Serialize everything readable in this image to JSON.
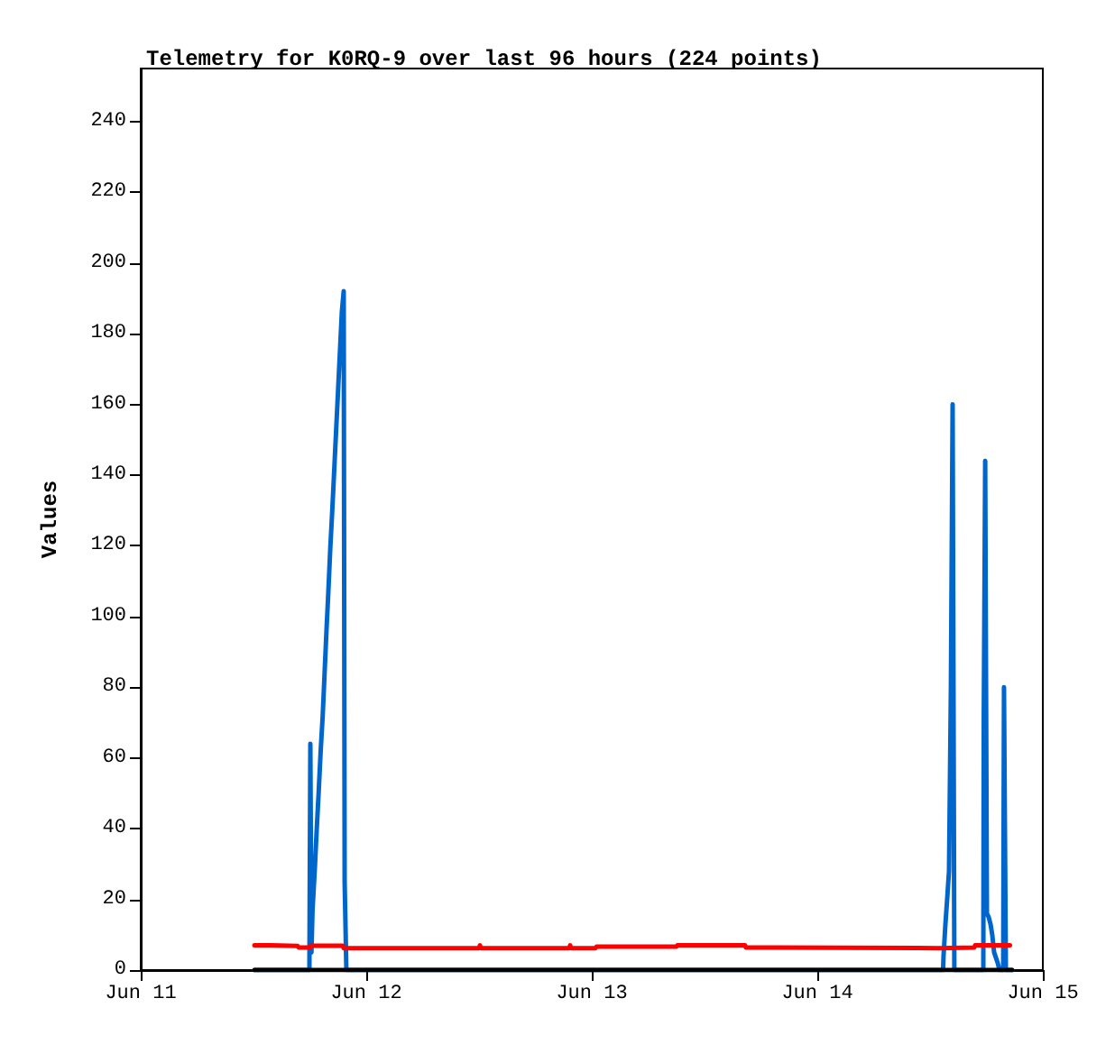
{
  "chart_data": {
    "type": "line",
    "title": "Telemetry for K0RQ-9 over last 96 hours (224 points)",
    "ylabel": "Values",
    "xlim": [
      "--06-11",
      "--06-15"
    ],
    "xticks": [
      {
        "value": "--06-11",
        "label": "Jun 11"
      },
      {
        "value": "--06-12",
        "label": "Jun 12"
      },
      {
        "value": "--06-13",
        "label": "Jun 13"
      },
      {
        "value": "--06-14",
        "label": "Jun 14"
      },
      {
        "value": "--06-15",
        "label": "Jun 15"
      }
    ],
    "ylim": [
      0,
      255
    ],
    "yticks": [
      0,
      20,
      40,
      60,
      80,
      100,
      120,
      140,
      160,
      180,
      200,
      220,
      240
    ],
    "grid": false,
    "marker": "none",
    "line_style": "solid",
    "series": [
      {
        "color": "#0066cc",
        "x": [
          "--06-11T12:06",
          "--06-11T17:57",
          "--06-11T18:03",
          "--06-11T18:10",
          "--06-11T18:17",
          "--06-11T18:20",
          "--06-11T18:32",
          "--06-11T18:44",
          "--06-11T18:57",
          "--06-11T19:09",
          "--06-11T19:22",
          "--06-11T19:34",
          "--06-11T19:46",
          "--06-11T19:58",
          "--06-11T20:10",
          "--06-11T20:23",
          "--06-11T20:35",
          "--06-11T20:47",
          "--06-11T20:59",
          "--06-11T21:11",
          "--06-11T21:24",
          "--06-11T21:36",
          "--06-11T21:42",
          "--06-11T21:53",
          "--06-14T13:23",
          "--06-14T13:26",
          "--06-14T13:38",
          "--06-14T13:49",
          "--06-14T14:01",
          "--06-14T14:13",
          "--06-14T14:24",
          "--06-14T14:35",
          "--06-14T17:40",
          "--06-14T17:43",
          "--06-14T17:52",
          "--06-14T18:03",
          "--06-14T18:14",
          "--06-14T18:26",
          "--06-14T18:37",
          "--06-14T18:49",
          "--06-14T19:12",
          "--06-14T19:23",
          "--06-14T19:47",
          "--06-14T19:52",
          "--06-14T20:04",
          "--06-14T20:44"
        ],
        "values": [
          0,
          0,
          64,
          5,
          17,
          17,
          29,
          40,
          51,
          62,
          72,
          84,
          96,
          107,
          119,
          130,
          141,
          152,
          163,
          174,
          186,
          192,
          25,
          0,
          0,
          4,
          13,
          20,
          28,
          80,
          160,
          0,
          0,
          72,
          144,
          16,
          15,
          13,
          10,
          5,
          2,
          0,
          0,
          80,
          0,
          0
        ]
      },
      {
        "color": "#ff0000",
        "x": [
          "--06-11T12:06",
          "--06-11T13:48",
          "--06-11T13:54",
          "--06-11T16:42",
          "--06-11T16:48",
          "--06-11T18:03",
          "--06-11T18:06",
          "--06-11T21:30",
          "--06-11T21:36",
          "--06-12T12:00",
          "--06-12T12:06",
          "--06-12T12:12",
          "--06-12T21:36",
          "--06-12T21:42",
          "--06-12T21:48",
          "--06-13T00:24",
          "--06-13T00:30",
          "--06-13T09:00",
          "--06-13T09:06",
          "--06-13T16:18",
          "--06-13T16:24",
          "--06-13T19:36",
          "--06-13T19:42",
          "--06-14T12:54",
          "--06-14T13:00",
          "--06-14T16:42",
          "--06-14T16:48",
          "--06-14T20:30"
        ],
        "values": [
          7,
          7,
          6.8,
          6.8,
          6.4,
          6.4,
          6.9,
          6.9,
          6.2,
          6.2,
          7,
          6.2,
          6.2,
          7,
          6.2,
          6.2,
          6.6,
          6.6,
          7,
          7,
          6.4,
          6.4,
          6.2,
          6.2,
          6.4,
          6.4,
          7,
          7
        ]
      },
      {
        "color": "#000000",
        "x": [
          "--06-11T12:06",
          "--06-14T20:44"
        ],
        "values": [
          0,
          0
        ]
      }
    ]
  }
}
